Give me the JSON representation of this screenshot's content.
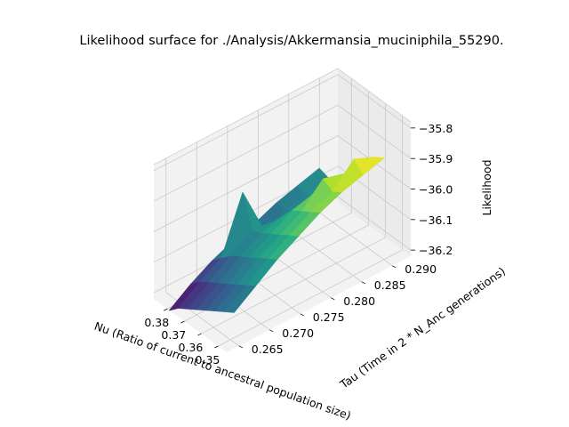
{
  "chart_data": {
    "type": "surface3d",
    "title": "Likelihood surface for ./Analysis/Akkermansia_muciniphila_55290.",
    "xlabel": "Nu (Ratio of current to ancestral population size)",
    "ylabel": "Tau (Time in 2 * N_Anc generations)",
    "zlabel": "Likelihood",
    "xlim": [
      0.345,
      0.388
    ],
    "ylim": [
      0.263,
      0.293
    ],
    "zlim": [
      -36.22,
      -35.78
    ],
    "xticks": [
      "0.35",
      "0.36",
      "0.37",
      "0.38"
    ],
    "xtick_values": [
      0.35,
      0.36,
      0.37,
      0.38
    ],
    "yticks": [
      "0.265",
      "0.270",
      "0.275",
      "0.280",
      "0.285",
      "0.290"
    ],
    "ytick_values": [
      0.265,
      0.27,
      0.275,
      0.28,
      0.285,
      0.29
    ],
    "zticks": [
      "−35.8",
      "−35.9",
      "−36.0",
      "−36.1",
      "−36.2"
    ],
    "ztick_values": [
      -35.8,
      -35.9,
      -36.0,
      -36.1,
      -36.2
    ],
    "colormap": "viridis",
    "grid": true,
    "x": [
      0.346,
      0.3515,
      0.357,
      0.3625,
      0.368,
      0.3735,
      0.379,
      0.3845
    ],
    "y": [
      0.2645,
      0.268,
      0.2715,
      0.275,
      0.2785,
      0.282,
      0.2855,
      0.289
    ],
    "z": [
      [
        -36.11,
        -36.06,
        -36.01,
        -35.97,
        -35.93,
        -35.9,
        -35.88,
        -35.86
      ],
      [
        -36.13,
        -36.08,
        -36.03,
        -35.99,
        -35.95,
        -35.92,
        -35.85,
        -35.88
      ],
      [
        -36.15,
        -36.1,
        -36.05,
        -36.01,
        -35.97,
        -35.9,
        -35.92,
        -35.92
      ],
      [
        -36.17,
        -36.12,
        -36.07,
        -36.03,
        -35.99,
        -35.97,
        -35.98,
        -35.96
      ],
      [
        -36.19,
        -36.14,
        -36.09,
        -36.05,
        -36.03,
        -36.02,
        -36.02,
        -36.0
      ],
      [
        -36.21,
        -36.16,
        -36.11,
        -36.06,
        -36.07,
        -36.07,
        -36.06,
        -36.04
      ],
      [
        -36.23,
        -36.18,
        -36.14,
        -35.96,
        -36.12,
        -36.09,
        -36.08,
        -36.06
      ],
      [
        -36.26,
        -36.21,
        -36.17,
        -36.14,
        -36.12,
        -36.09,
        -36.07,
        -36.05
      ]
    ]
  }
}
